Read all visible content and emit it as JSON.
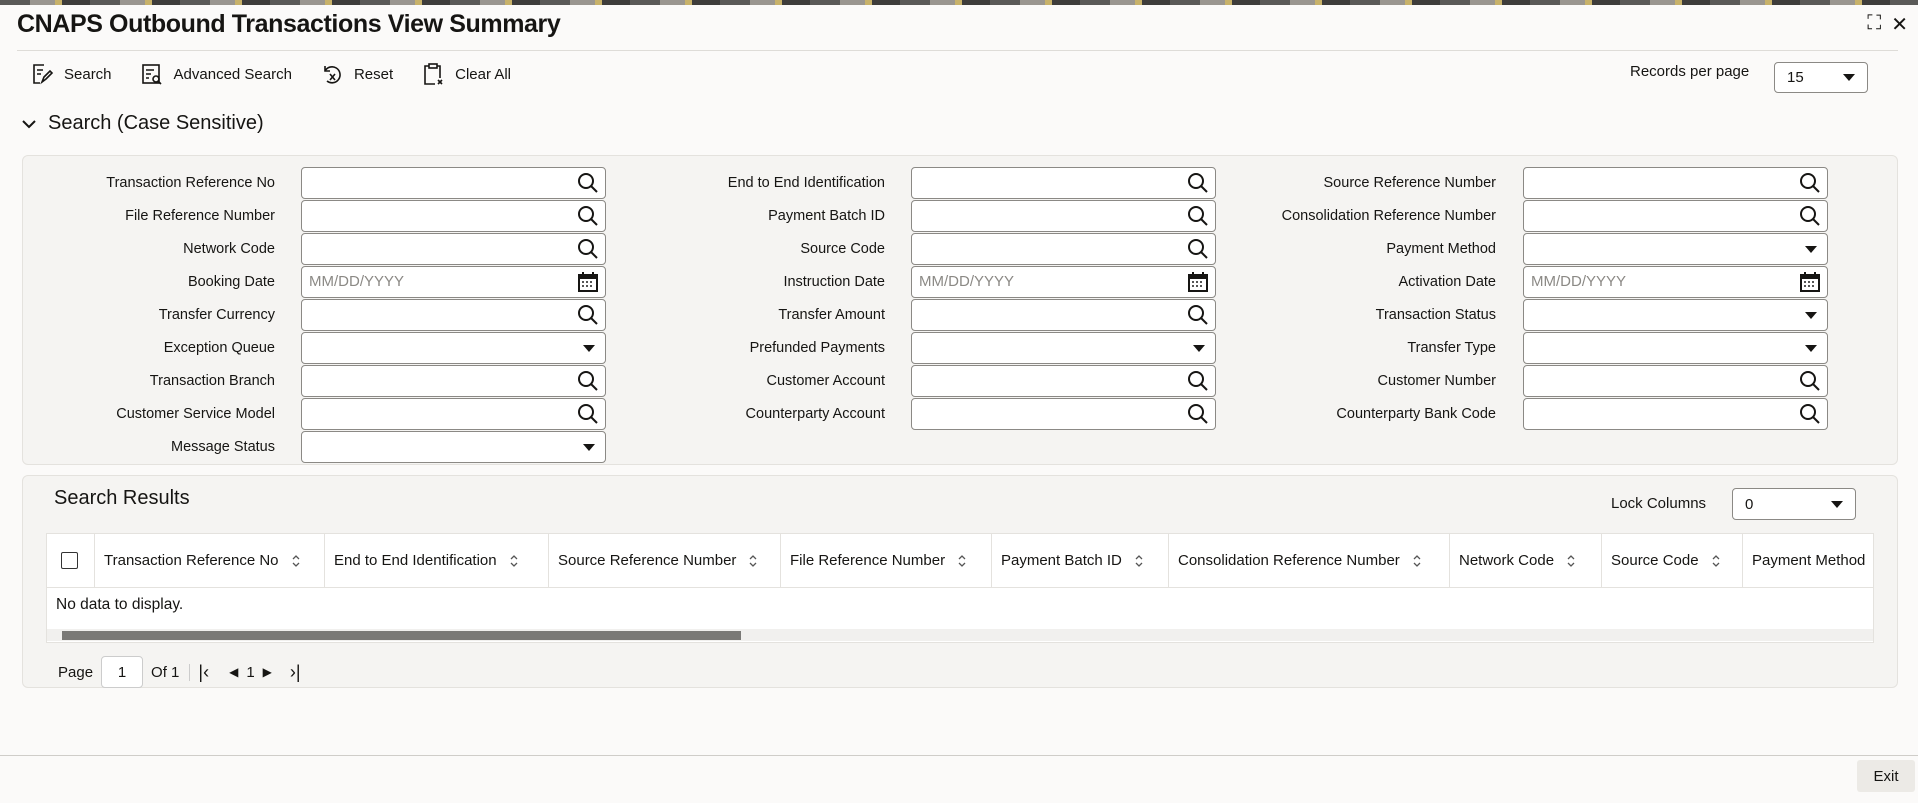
{
  "window": {
    "title": "CNAPS Outbound Transactions View Summary"
  },
  "toolbar": {
    "search": "Search",
    "advanced_search": "Advanced Search",
    "reset": "Reset",
    "clear_all": "Clear All"
  },
  "records_per_page": {
    "label": "Records per page",
    "value": "15"
  },
  "search": {
    "section_title": "Search (Case Sensitive)",
    "date_placeholder": "MM/DD/YYYY",
    "columns": [
      [
        {
          "label": "Transaction Reference No",
          "type": "search"
        },
        {
          "label": "File Reference Number",
          "type": "search"
        },
        {
          "label": "Network Code",
          "type": "search"
        },
        {
          "label": "Booking Date",
          "type": "date"
        },
        {
          "label": "Transfer Currency",
          "type": "search"
        },
        {
          "label": "Exception Queue",
          "type": "select"
        },
        {
          "label": "Transaction Branch",
          "type": "search"
        },
        {
          "label": "Customer Service Model",
          "type": "search"
        },
        {
          "label": "Message Status",
          "type": "select"
        }
      ],
      [
        {
          "label": "End to End Identification",
          "type": "search"
        },
        {
          "label": "Payment Batch ID",
          "type": "search"
        },
        {
          "label": "Source Code",
          "type": "search"
        },
        {
          "label": "Instruction Date",
          "type": "date"
        },
        {
          "label": "Transfer Amount",
          "type": "search"
        },
        {
          "label": "Prefunded Payments",
          "type": "select"
        },
        {
          "label": "Customer Account",
          "type": "search"
        },
        {
          "label": "Counterparty Account",
          "type": "search"
        }
      ],
      [
        {
          "label": "Source Reference Number",
          "type": "search"
        },
        {
          "label": "Consolidation Reference Number",
          "type": "search"
        },
        {
          "label": "Payment Method",
          "type": "select"
        },
        {
          "label": "Activation Date",
          "type": "date"
        },
        {
          "label": "Transaction Status",
          "type": "select"
        },
        {
          "label": "Transfer Type",
          "type": "select"
        },
        {
          "label": "Customer Number",
          "type": "search"
        },
        {
          "label": "Counterparty Bank Code",
          "type": "search"
        }
      ]
    ]
  },
  "results": {
    "title": "Search Results",
    "lock_columns_label": "Lock Columns",
    "lock_columns_value": "0",
    "columns": [
      "Transaction Reference No",
      "End to End Identification",
      "Source Reference Number",
      "File Reference Number",
      "Payment Batch ID",
      "Consolidation Reference Number",
      "Network Code",
      "Source Code",
      "Payment Method"
    ],
    "empty_text": "No data to display.",
    "pagination": {
      "page_label": "Page",
      "page": "1",
      "of_label": "Of 1",
      "current": "1"
    }
  },
  "footer": {
    "exit": "Exit"
  }
}
